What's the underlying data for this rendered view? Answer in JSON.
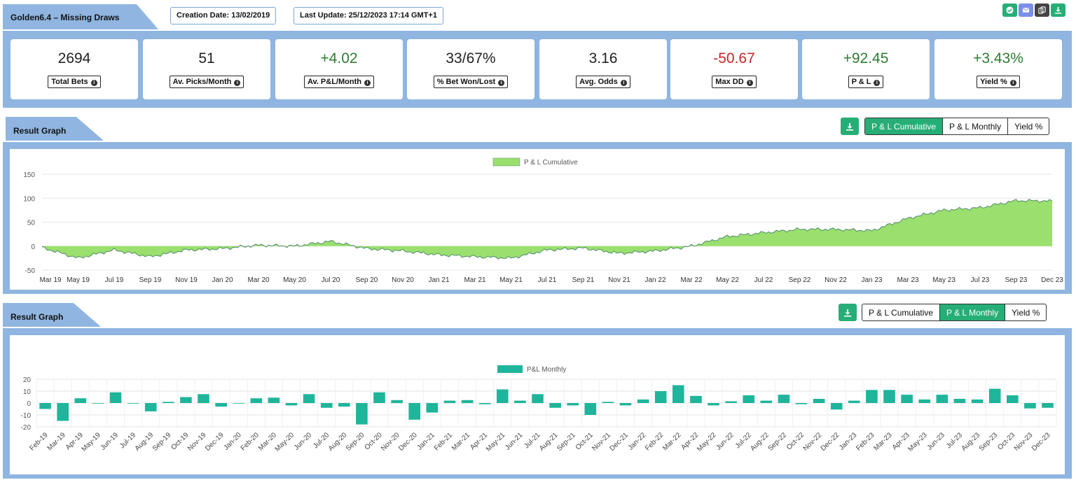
{
  "header": {
    "title": "Golden6.4 – Missing Draws",
    "creation_date": "Creation Date: 13/02/2019",
    "last_update": "Last Update: 25/12/2023 17:14 GMT+1",
    "icons": [
      {
        "name": "check-icon",
        "color": "#27ae76"
      },
      {
        "name": "mail-icon",
        "color": "#7b8ee8"
      },
      {
        "name": "copy-icon",
        "color": "#444444"
      },
      {
        "name": "download-icon",
        "color": "#27ae76"
      }
    ]
  },
  "stats": [
    {
      "value": "2694",
      "label": "Total Bets",
      "tone": "neutral"
    },
    {
      "value": "51",
      "label": "Av. Picks/Month",
      "tone": "neutral"
    },
    {
      "value": "+4.02",
      "label": "Av. P&L/Month",
      "tone": "pos"
    },
    {
      "value": "33/67%",
      "label": "% Bet Won/Lost",
      "tone": "neutral"
    },
    {
      "value": "3.16",
      "label": "Avg. Odds",
      "tone": "neutral"
    },
    {
      "value": "-50.67",
      "label": "Max DD",
      "tone": "neg"
    },
    {
      "value": "+92.45",
      "label": "P & L",
      "tone": "pos"
    },
    {
      "value": "+3.43%",
      "label": "Yield %",
      "tone": "pos"
    }
  ],
  "graph1": {
    "title": "Result Graph",
    "buttons": [
      "P & L Cumulative",
      "P & L Monthly",
      "Yield %"
    ],
    "active": 0
  },
  "graph2": {
    "title": "Result Graph",
    "buttons": [
      "P & L Cumulative",
      "P & L Monthly",
      "Yield %"
    ],
    "active": 1
  },
  "chart_data": [
    {
      "type": "area",
      "legend": "P & L Cumulative",
      "color": "#9be06e",
      "ylim": [
        -50,
        150
      ],
      "yticks": [
        150,
        100,
        50,
        0,
        -50
      ],
      "x_labels": [
        "Mar 19",
        "May 19",
        "Jul 19",
        "Sep 19",
        "Nov 19",
        "Jan 20",
        "Mar 20",
        "May 20",
        "Jul 20",
        "Sep 20",
        "Nov 20",
        "Jan 21",
        "Mar 21",
        "May 21",
        "Jul 21",
        "Sep 21",
        "Nov 21",
        "Jan 22",
        "Mar 22",
        "May 22",
        "Jul 22",
        "Sep 22",
        "Nov 22",
        "Jan 23",
        "Mar 23",
        "May 23",
        "Jul 23",
        "Sep 23",
        "Dec 23"
      ],
      "x": [
        "Mar 19",
        "May 19",
        "Jul 19",
        "Sep 19",
        "Nov 19",
        "Jan 20",
        "Mar 20",
        "May 20",
        "Jul 20",
        "Sep 20",
        "Nov 20",
        "Jan 21",
        "Mar 21",
        "May 21",
        "Jul 21",
        "Sep 21",
        "Nov 21",
        "Jan 22",
        "Mar 22",
        "May 22",
        "Jul 22",
        "Sep 22",
        "Nov 22",
        "Jan 23",
        "Mar 23",
        "May 23",
        "Jul 23",
        "Sep 23",
        "Dec 23"
      ],
      "values": [
        -3,
        -25,
        -8,
        -22,
        -8,
        -5,
        2,
        0,
        10,
        -5,
        -10,
        -18,
        -22,
        -25,
        -8,
        -4,
        -15,
        -10,
        0,
        20,
        28,
        35,
        35,
        32,
        58,
        75,
        80,
        95,
        94
      ]
    },
    {
      "type": "bar",
      "legend": "P&L Monthly",
      "color": "#1fb59a",
      "ylim": [
        -20,
        20
      ],
      "yticks": [
        20,
        10,
        0,
        -10,
        -20
      ],
      "categories": [
        "Feb-19",
        "Mar-19",
        "Apr-19",
        "May-19",
        "Jun-19",
        "Jul-19",
        "Aug-19",
        "Sep-19",
        "Oct-19",
        "Nov-19",
        "Dec-19",
        "Jan-20",
        "Feb-20",
        "Mar-20",
        "May-20",
        "Jun-20",
        "Jul-20",
        "Aug-20",
        "Sep-20",
        "Oct-20",
        "Nov-20",
        "Dec-20",
        "Jan-21",
        "Feb-21",
        "Mar-21",
        "Apr-21",
        "May-21",
        "Jun-21",
        "Jul-21",
        "Aug-21",
        "Sep-21",
        "Oct-21",
        "Nov-21",
        "Dec-21",
        "Jan-22",
        "Feb-22",
        "Mar-22",
        "Apr-22",
        "May-22",
        "Jun-22",
        "Jul-22",
        "Aug-22",
        "Sep-22",
        "Oct-22",
        "Nov-22",
        "Dec-22",
        "Jan-23",
        "Feb-23",
        "Mar-23",
        "Apr-23",
        "May-23",
        "Jun-23",
        "Jul-23",
        "Aug-23",
        "Sep-23",
        "Oct-23",
        "Nov-23",
        "Dec-23"
      ],
      "values": [
        -5,
        -15,
        4,
        0,
        9,
        -0.5,
        -7,
        1,
        5,
        7.5,
        -3,
        0,
        4,
        4.5,
        -2,
        7.5,
        -4,
        -3,
        -18,
        9,
        2.5,
        -14,
        -8,
        2,
        2.5,
        -1,
        11.5,
        2,
        7.5,
        -4,
        -2,
        -10,
        1,
        -2,
        3,
        10,
        15,
        6,
        -2,
        1.5,
        6.5,
        2,
        7,
        -1,
        3.5,
        -5.5,
        2,
        11,
        11,
        7,
        3,
        7,
        3.5,
        3,
        12,
        6.5,
        -4.5,
        -4
      ]
    }
  ]
}
